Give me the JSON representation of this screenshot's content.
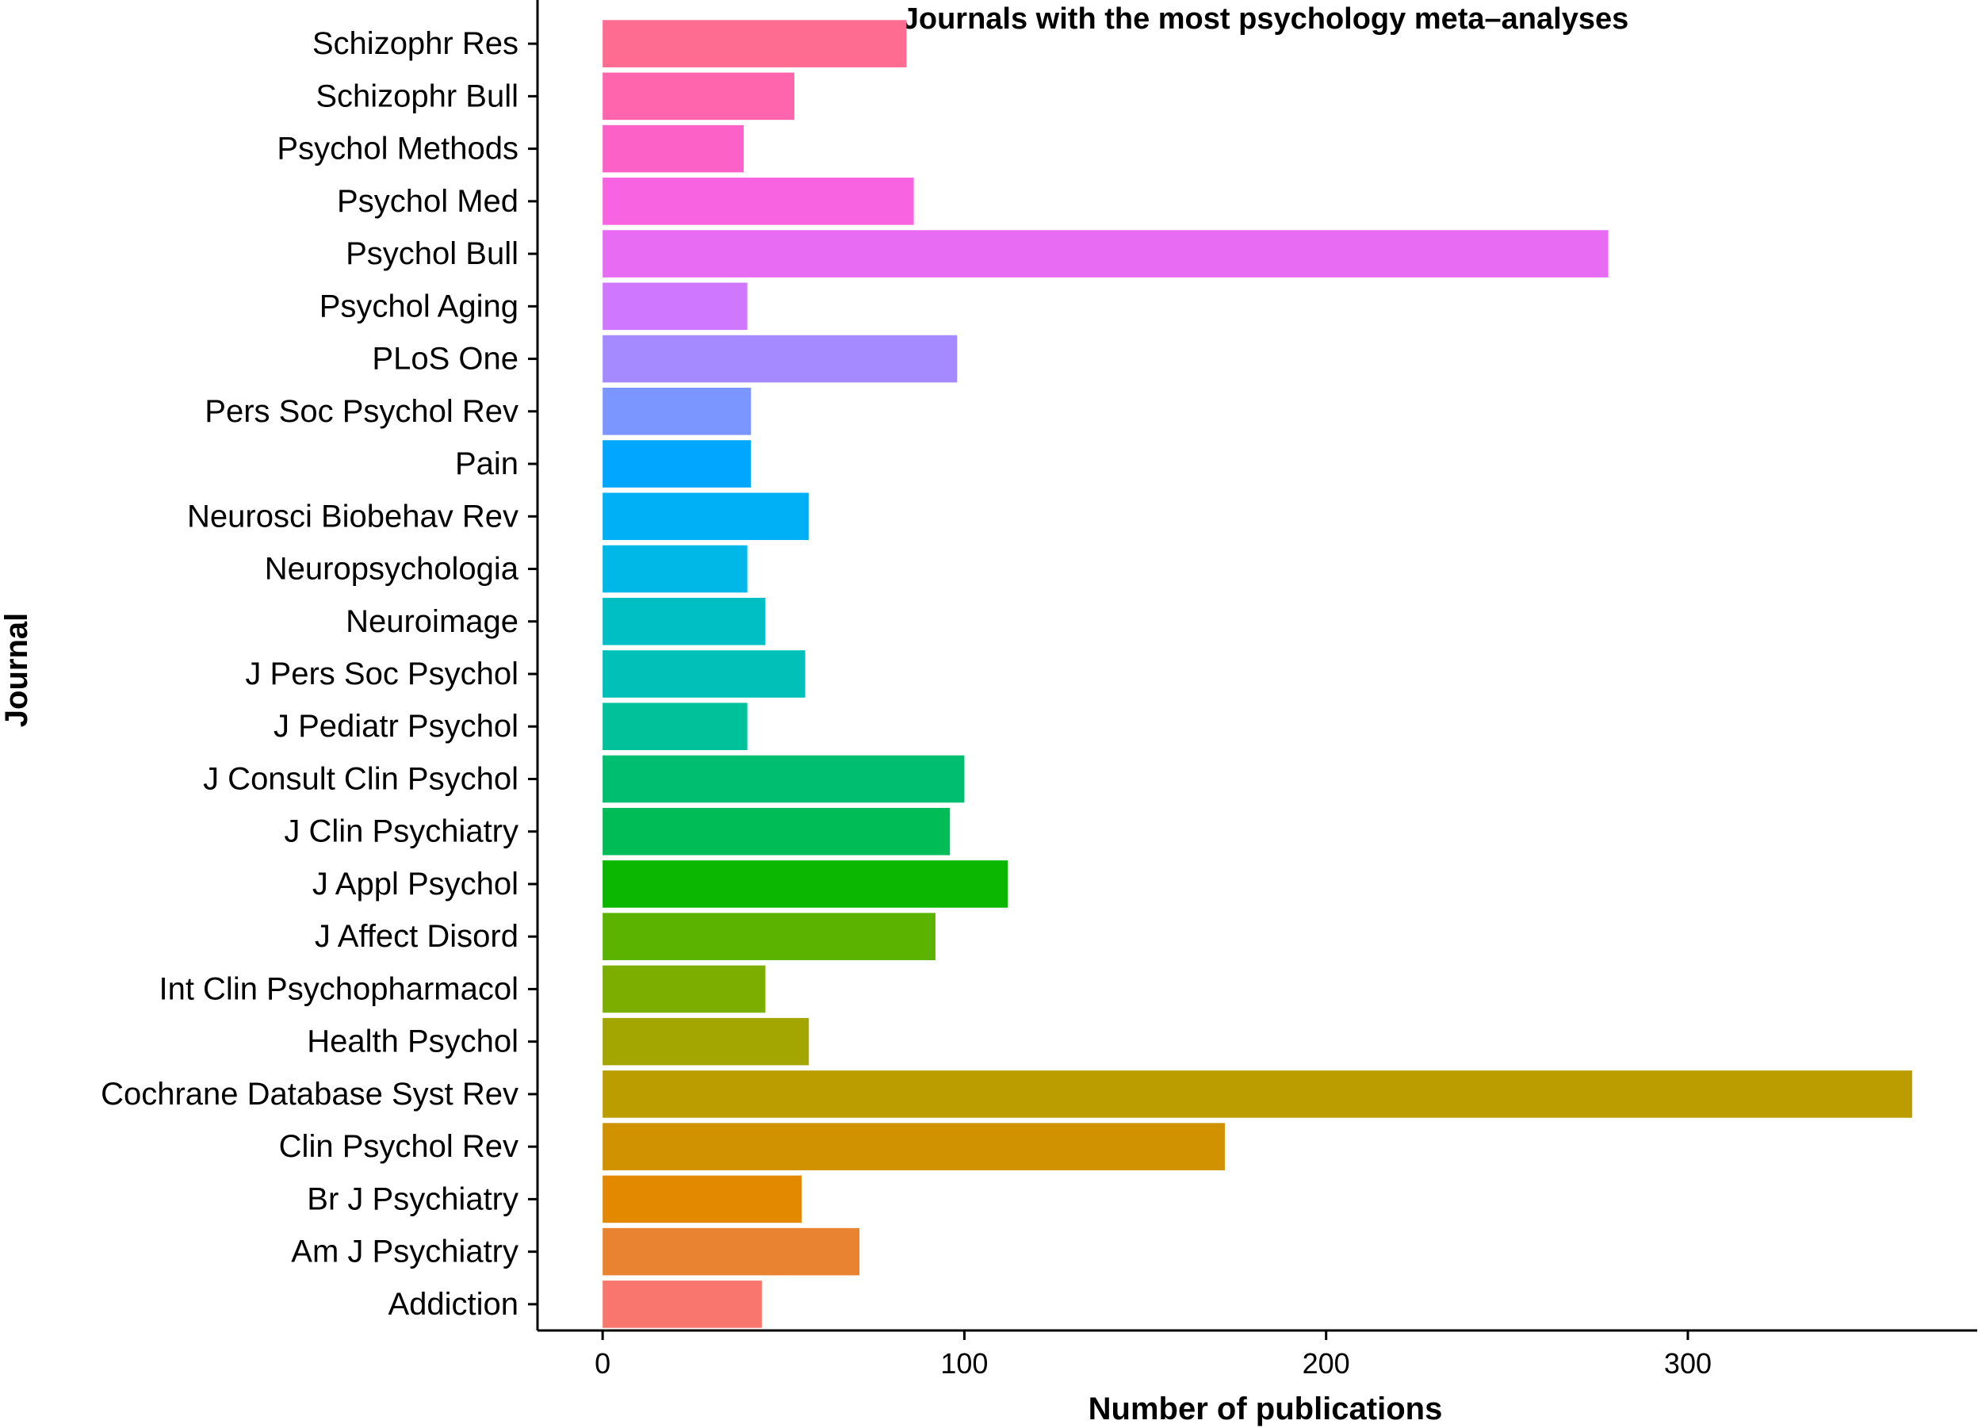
{
  "chart_data": {
    "type": "bar",
    "orientation": "horizontal",
    "title": "Journals with the most psychology meta–analyses",
    "xlabel": "Number of publications",
    "ylabel": "Journal",
    "xlim": [
      -18,
      380
    ],
    "xticks": [
      0,
      100,
      200,
      300
    ],
    "xtick_labels": [
      "0",
      "100",
      "200",
      "300"
    ],
    "grid": false,
    "legend": "none",
    "categories": [
      "Schizophr Res",
      "Schizophr Bull",
      "Psychol Methods",
      "Psychol Med",
      "Psychol Bull",
      "Psychol Aging",
      "PLoS One",
      "Pers Soc Psychol Rev",
      "Pain",
      "Neurosci Biobehav Rev",
      "Neuropsychologia",
      "Neuroimage",
      "J Pers Soc Psychol",
      "J Pediatr Psychol",
      "J Consult Clin Psychol",
      "J Clin Psychiatry",
      "J Appl Psychol",
      "J Affect Disord",
      "Int Clin Psychopharmacol",
      "Health Psychol",
      "Cochrane Database Syst Rev",
      "Clin Psychol Rev",
      "Br J Psychiatry",
      "Am J Psychiatry",
      "Addiction"
    ],
    "values": [
      84,
      53,
      39,
      86,
      278,
      40,
      98,
      41,
      41,
      57,
      40,
      45,
      56,
      40,
      100,
      96,
      112,
      92,
      45,
      57,
      362,
      172,
      55,
      71,
      44
    ],
    "colors": [
      "#FF6C91",
      "#FF65AC",
      "#FC61C8",
      "#F763E0",
      "#E76BF3",
      "#CF78FF",
      "#A58AFF",
      "#7C96FF",
      "#00A6FF",
      "#00B0F6",
      "#00B8E7",
      "#00BFC4",
      "#00C0B8",
      "#00C19A",
      "#00BE70",
      "#00BC56",
      "#0CB702",
      "#5BB300",
      "#7CAE00",
      "#A3A500",
      "#BB9D00",
      "#D09200",
      "#E38900",
      "#EA8331",
      "#F8766D"
    ]
  }
}
